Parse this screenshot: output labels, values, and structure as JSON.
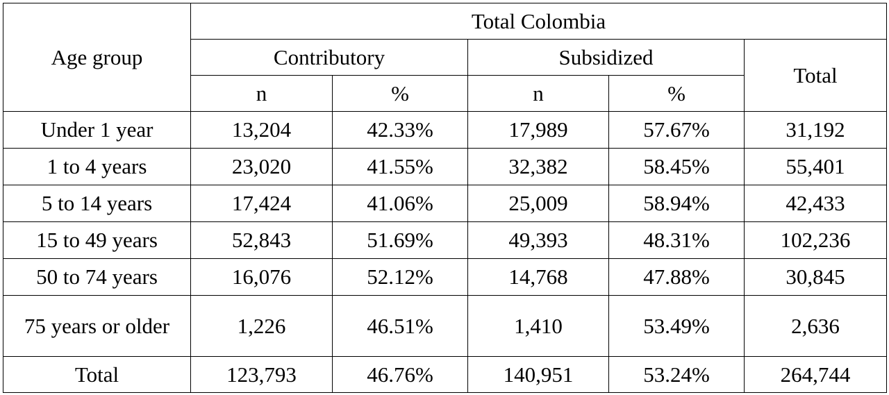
{
  "header": {
    "age_group": "Age group",
    "region": "Total Colombia",
    "contributory": "Contributory",
    "subsidized": "Subsidized",
    "total": "Total",
    "n": "n",
    "pct": "%"
  },
  "rows": [
    {
      "age": "Under 1 year",
      "c_n": "13,204",
      "c_pct": "42.33%",
      "s_n": "17,989",
      "s_pct": "57.67%",
      "total": "31,192"
    },
    {
      "age": "1 to 4 years",
      "c_n": "23,020",
      "c_pct": "41.55%",
      "s_n": "32,382",
      "s_pct": "58.45%",
      "total": "55,401"
    },
    {
      "age": "5 to 14 years",
      "c_n": "17,424",
      "c_pct": "41.06%",
      "s_n": "25,009",
      "s_pct": "58.94%",
      "total": "42,433"
    },
    {
      "age": "15 to 49 years",
      "c_n": "52,843",
      "c_pct": "51.69%",
      "s_n": "49,393",
      "s_pct": "48.31%",
      "total": "102,236"
    },
    {
      "age": "50 to 74 years",
      "c_n": "16,076",
      "c_pct": "52.12%",
      "s_n": "14,768",
      "s_pct": "47.88%",
      "total": "30,845"
    },
    {
      "age": "75 years or older",
      "c_n": "1,226",
      "c_pct": "46.51%",
      "s_n": "1,410",
      "s_pct": "53.49%",
      "total": "2,636"
    },
    {
      "age": "Total",
      "c_n": "123,793",
      "c_pct": "46.76%",
      "s_n": "140,951",
      "s_pct": "53.24%",
      "total": "264,744"
    }
  ]
}
